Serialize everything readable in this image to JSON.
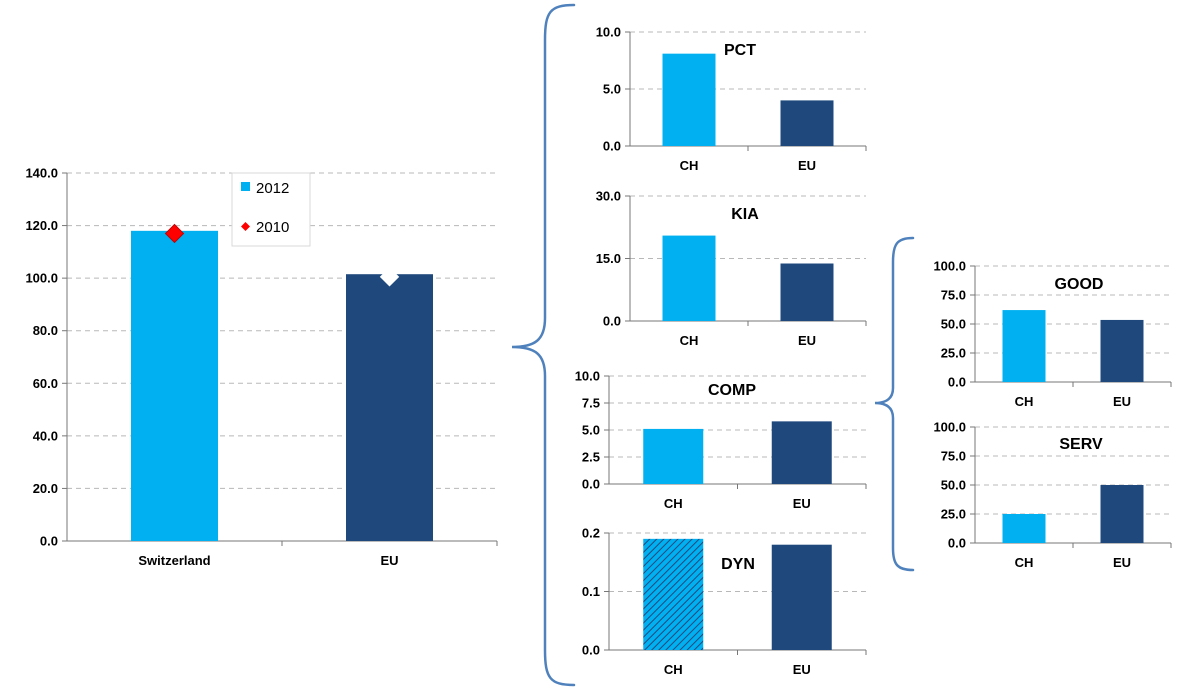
{
  "colors": {
    "switzerland": "#00b0f0",
    "eu": "#1f497d",
    "marker_2010": "#ff0000",
    "marker_2010_eu": "#ffffff"
  },
  "chart_data": [
    {
      "id": "overall",
      "type": "bar",
      "categories": [
        "Switzerland",
        "EU"
      ],
      "series": [
        {
          "name": "2012",
          "values": [
            118,
            101.5
          ]
        }
      ],
      "markers": [
        {
          "name": "2010",
          "values": [
            117,
            100.5
          ]
        }
      ],
      "ylim": [
        0,
        140
      ],
      "yticks": [
        "0.0",
        "20.0",
        "40.0",
        "60.0",
        "80.0",
        "100.0",
        "120.0",
        "140.0"
      ],
      "grid": true,
      "legend": "top-right"
    },
    {
      "id": "pct",
      "type": "bar",
      "title": "PCT",
      "categories": [
        "CH",
        "EU"
      ],
      "values": [
        8.1,
        4.0
      ],
      "ylim": [
        0,
        10
      ],
      "yticks": [
        "0.0",
        "5.0",
        "10.0"
      ],
      "grid": true
    },
    {
      "id": "kia",
      "type": "bar",
      "title": "KIA",
      "categories": [
        "CH",
        "EU"
      ],
      "values": [
        20.5,
        13.8
      ],
      "ylim": [
        0,
        30
      ],
      "yticks": [
        "0.0",
        "15.0",
        "30.0"
      ],
      "grid": true
    },
    {
      "id": "comp",
      "type": "bar",
      "title": "COMP",
      "categories": [
        "CH",
        "EU"
      ],
      "values": [
        5.1,
        5.8
      ],
      "ylim": [
        0,
        10
      ],
      "yticks": [
        "0.0",
        "2.5",
        "5.0",
        "7.5",
        "10.0"
      ],
      "grid": true
    },
    {
      "id": "dyn",
      "type": "bar",
      "title": "DYN",
      "categories": [
        "CH",
        "EU"
      ],
      "values": [
        0.19,
        0.18
      ],
      "ylim": [
        0,
        0.2
      ],
      "yticks": [
        "0.0",
        "0.1",
        "0.2"
      ],
      "grid": true,
      "hatched": [
        "CH"
      ]
    },
    {
      "id": "good",
      "type": "bar",
      "title": "GOOD",
      "categories": [
        "CH",
        "EU"
      ],
      "values": [
        62,
        53.5
      ],
      "ylim": [
        0,
        100
      ],
      "yticks": [
        "0.0",
        "25.0",
        "50.0",
        "75.0",
        "100.0"
      ],
      "grid": true
    },
    {
      "id": "serv",
      "type": "bar",
      "title": "SERV",
      "categories": [
        "CH",
        "EU"
      ],
      "values": [
        25,
        50
      ],
      "ylim": [
        0,
        100
      ],
      "yticks": [
        "0.0",
        "25.0",
        "50.0",
        "75.0",
        "100.0"
      ],
      "grid": true
    }
  ]
}
